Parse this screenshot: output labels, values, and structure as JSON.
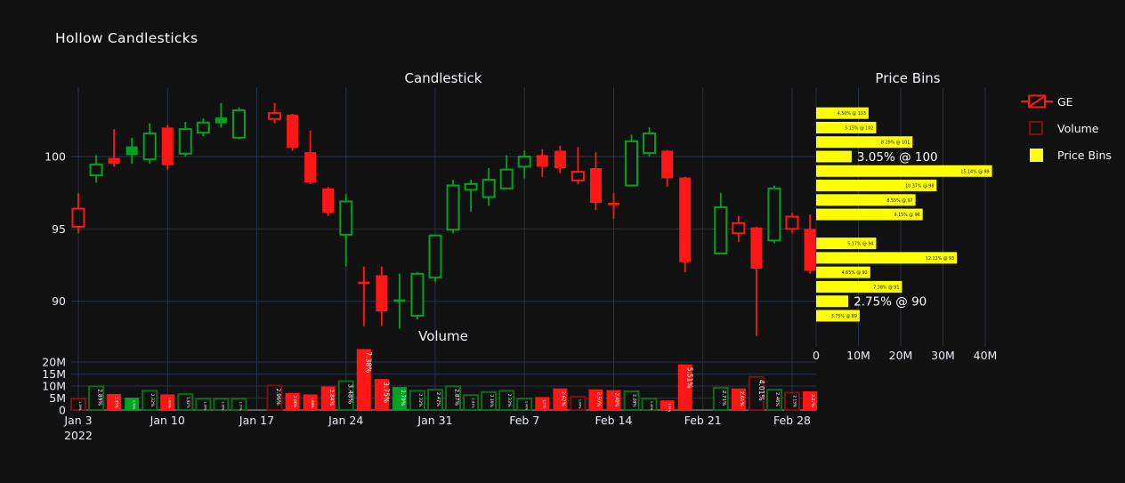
{
  "title": "Hollow Candlesticks",
  "panels": {
    "candlestick": {
      "title": "Candlestick"
    },
    "volume": {
      "title": "Volume"
    },
    "price_bins": {
      "title": "Price Bins"
    }
  },
  "legend": {
    "items": [
      {
        "label": "GE",
        "glyph": "candlestick-icon"
      },
      {
        "label": "Volume",
        "glyph": "hollow-square-icon"
      },
      {
        "label": "Price Bins",
        "glyph": "filled-square-icon"
      }
    ]
  },
  "colors": {
    "background": "#111111",
    "green": "#00a321",
    "green_dim": "#0e6b16",
    "red": "#ff1717",
    "red_dim": "#7d1111",
    "yellow": "#ffff00",
    "grid": "#263347",
    "text": "#e9eef7",
    "axis_line": "#a3a8b0",
    "bin_label": "#111111"
  },
  "chart_data": {
    "type": "candlestick",
    "symbol": "GE",
    "title": "Hollow Candlesticks",
    "price_axis_ticks": [
      100,
      95,
      90
    ],
    "volume_axis_ticks": [
      {
        "v": 0,
        "label": "0"
      },
      {
        "v": 5,
        "label": "5M"
      },
      {
        "v": 10,
        "label": "10M"
      },
      {
        "v": 15,
        "label": "15M"
      },
      {
        "v": 20,
        "label": "20M"
      }
    ],
    "x_ticks": [
      {
        "slot": 0,
        "label": "Jan 3",
        "sublabel": "2022"
      },
      {
        "slot": 5,
        "label": "Jan 10"
      },
      {
        "slot": 10,
        "label": "Jan 17"
      },
      {
        "slot": 15,
        "label": "Jan 24"
      },
      {
        "slot": 20,
        "label": "Jan 31"
      },
      {
        "slot": 25,
        "label": "Feb 7"
      },
      {
        "slot": 30,
        "label": "Feb 14"
      },
      {
        "slot": 35,
        "label": "Feb 21"
      },
      {
        "slot": 40,
        "label": "Feb 28"
      }
    ],
    "candles": [
      {
        "date": "Jan 3",
        "slot": 0,
        "open": 95.15,
        "high": 97.5,
        "low": 94.7,
        "close": 96.4,
        "color": "r",
        "body": "hollow",
        "volume_m": 4.7,
        "volume_pct": "1.38%",
        "vol_style": "hollow"
      },
      {
        "date": "Jan 4",
        "slot": 1,
        "open": 98.7,
        "high": 100.1,
        "low": 98.2,
        "close": 99.45,
        "color": "g",
        "body": "hollow",
        "volume_m": 9.9,
        "volume_pct": "2.89%",
        "vol_style": "hollow"
      },
      {
        "date": "Jan 5",
        "slot": 2,
        "open": 99.9,
        "high": 101.9,
        "low": 99.3,
        "close": 99.5,
        "color": "r",
        "body": "filled",
        "volume_m": 6.7,
        "volume_pct": "1.95%",
        "vol_style": "filled"
      },
      {
        "date": "Jan 6",
        "slot": 3,
        "open": 100.7,
        "high": 101.3,
        "low": 99.5,
        "close": 100.1,
        "color": "g",
        "body": "filled",
        "volume_m": 5.2,
        "volume_pct": "1.52%",
        "vol_style": "filled"
      },
      {
        "date": "Jan 7",
        "slot": 4,
        "open": 99.8,
        "high": 102.3,
        "low": 99.5,
        "close": 101.6,
        "color": "g",
        "body": "hollow",
        "volume_m": 8.0,
        "volume_pct": "2.32%",
        "vol_style": "hollow"
      },
      {
        "date": "Jan 10",
        "slot": 5,
        "open": 102.0,
        "high": 102.2,
        "low": 99.1,
        "close": 99.4,
        "color": "r",
        "body": "filled",
        "volume_m": 6.5,
        "volume_pct": "1.89%",
        "vol_style": "filled"
      },
      {
        "date": "Jan 11",
        "slot": 6,
        "open": 100.2,
        "high": 102.4,
        "low": 100.0,
        "close": 101.9,
        "color": "g",
        "body": "hollow",
        "volume_m": 6.6,
        "volume_pct": "1.92%",
        "vol_style": "hollow"
      },
      {
        "date": "Jan 12",
        "slot": 7,
        "open": 101.65,
        "high": 102.65,
        "low": 101.4,
        "close": 102.35,
        "color": "g",
        "body": "hollow",
        "volume_m": 4.7,
        "volume_pct": "1.38%",
        "vol_style": "hollow"
      },
      {
        "date": "Jan 13",
        "slot": 8,
        "open": 102.7,
        "high": 103.7,
        "low": 102.0,
        "close": 102.3,
        "color": "g",
        "body": "filled",
        "volume_m": 4.7,
        "volume_pct": "1.36%",
        "vol_style": "hollow"
      },
      {
        "date": "Jan 14",
        "slot": 9,
        "open": 101.3,
        "high": 103.4,
        "low": 101.2,
        "close": 103.2,
        "color": "g",
        "body": "hollow",
        "volume_m": 4.7,
        "volume_pct": "1.37%",
        "vol_style": "hollow"
      },
      {
        "date": "Jan 18",
        "slot": 11,
        "open": 102.6,
        "high": 103.7,
        "low": 102.3,
        "close": 103.0,
        "color": "r",
        "body": "hollow",
        "volume_m": 10.2,
        "volume_pct": "2.96%",
        "vol_style": "hollow"
      },
      {
        "date": "Jan 19",
        "slot": 12,
        "open": 102.9,
        "high": 102.95,
        "low": 100.4,
        "close": 100.6,
        "color": "r",
        "body": "filled",
        "volume_m": 7.1,
        "volume_pct": "2.06%",
        "vol_style": "filled"
      },
      {
        "date": "Jan 20",
        "slot": 13,
        "open": 100.3,
        "high": 101.8,
        "low": 98.1,
        "close": 98.2,
        "color": "r",
        "body": "filled",
        "volume_m": 6.5,
        "volume_pct": "1.88%",
        "vol_style": "filled"
      },
      {
        "date": "Jan 21",
        "slot": 14,
        "open": 97.8,
        "high": 97.9,
        "low": 95.9,
        "close": 96.1,
        "color": "r",
        "body": "filled",
        "volume_m": 9.8,
        "volume_pct": "2.84%",
        "vol_style": "filled"
      },
      {
        "date": "Jan 24",
        "slot": 15,
        "open": 94.6,
        "high": 97.4,
        "low": 92.4,
        "close": 96.9,
        "color": "g",
        "body": "hollow",
        "volume_m": 12.0,
        "volume_pct": "3.48%",
        "vol_style": "hollow"
      },
      {
        "date": "Jan 25",
        "slot": 16,
        "open": 91.35,
        "high": 92.4,
        "low": 88.3,
        "close": 91.2,
        "color": "r",
        "body": "filled",
        "volume_m": 25.4,
        "volume_pct": "7.38%",
        "vol_style": "filled"
      },
      {
        "date": "Jan 26",
        "slot": 17,
        "open": 91.8,
        "high": 92.4,
        "low": 88.3,
        "close": 89.3,
        "color": "r",
        "body": "filled",
        "volume_m": 12.9,
        "volume_pct": "3.75%",
        "vol_style": "filled"
      },
      {
        "date": "Jan 27",
        "slot": 18,
        "open": 90.1,
        "high": 91.9,
        "low": 88.1,
        "close": 90.0,
        "color": "g",
        "body": "filled",
        "volume_m": 9.6,
        "volume_pct": "2.79%",
        "vol_style": "filled"
      },
      {
        "date": "Jan 28",
        "slot": 19,
        "open": 89.0,
        "high": 92.0,
        "low": 88.75,
        "close": 91.9,
        "color": "g",
        "body": "hollow",
        "volume_m": 8.0,
        "volume_pct": "2.32%",
        "vol_style": "hollow"
      },
      {
        "date": "Jan 31",
        "slot": 20,
        "open": 91.65,
        "high": 94.6,
        "low": 91.35,
        "close": 94.55,
        "color": "g",
        "body": "hollow",
        "volume_m": 8.5,
        "volume_pct": "2.47%",
        "vol_style": "hollow"
      },
      {
        "date": "Feb 1",
        "slot": 21,
        "open": 94.95,
        "high": 98.4,
        "low": 94.7,
        "close": 98.0,
        "color": "g",
        "body": "hollow",
        "volume_m": 9.9,
        "volume_pct": "2.87%",
        "vol_style": "hollow"
      },
      {
        "date": "Feb 2",
        "slot": 22,
        "open": 97.7,
        "high": 98.4,
        "low": 96.2,
        "close": 98.1,
        "color": "g",
        "body": "hollow",
        "volume_m": 6.2,
        "volume_pct": "1.81%",
        "vol_style": "hollow"
      },
      {
        "date": "Feb 3",
        "slot": 23,
        "open": 97.2,
        "high": 99.2,
        "low": 96.6,
        "close": 98.4,
        "color": "g",
        "body": "hollow",
        "volume_m": 7.5,
        "volume_pct": "2.19%",
        "vol_style": "hollow"
      },
      {
        "date": "Feb 4",
        "slot": 24,
        "open": 97.8,
        "high": 100.1,
        "low": 97.75,
        "close": 99.1,
        "color": "g",
        "body": "hollow",
        "volume_m": 8.0,
        "volume_pct": "2.33%",
        "vol_style": "hollow"
      },
      {
        "date": "Feb 7",
        "slot": 25,
        "open": 99.3,
        "high": 100.4,
        "low": 98.5,
        "close": 100.0,
        "color": "g",
        "body": "hollow",
        "volume_m": 4.8,
        "volume_pct": "1.40%",
        "vol_style": "hollow"
      },
      {
        "date": "Feb 8",
        "slot": 26,
        "open": 100.1,
        "high": 100.5,
        "low": 98.6,
        "close": 99.3,
        "color": "r",
        "body": "filled",
        "volume_m": 5.4,
        "volume_pct": "1.57%",
        "vol_style": "filled"
      },
      {
        "date": "Feb 9",
        "slot": 27,
        "open": 100.4,
        "high": 100.75,
        "low": 98.85,
        "close": 99.2,
        "color": "r",
        "body": "filled",
        "volume_m": 9.0,
        "volume_pct": "2.62%",
        "vol_style": "filled"
      },
      {
        "date": "Feb 10",
        "slot": 28,
        "open": 98.35,
        "high": 100.65,
        "low": 98.1,
        "close": 98.95,
        "color": "r",
        "body": "hollow",
        "volume_m": 5.6,
        "volume_pct": "1.64%",
        "vol_style": "hollow"
      },
      {
        "date": "Feb 11",
        "slot": 29,
        "open": 99.2,
        "high": 100.3,
        "low": 96.3,
        "close": 96.8,
        "color": "r",
        "body": "filled",
        "volume_m": 8.6,
        "volume_pct": "2.50%",
        "vol_style": "filled"
      },
      {
        "date": "Feb 14",
        "slot": 30,
        "open": 96.8,
        "high": 97.5,
        "low": 95.7,
        "close": 96.65,
        "color": "r",
        "body": "filled",
        "volume_m": 8.3,
        "volume_pct": "2.40%",
        "vol_style": "filled"
      },
      {
        "date": "Feb 15",
        "slot": 31,
        "open": 98.0,
        "high": 101.5,
        "low": 97.95,
        "close": 101.05,
        "color": "g",
        "body": "hollow",
        "volume_m": 7.8,
        "volume_pct": "2.28%",
        "vol_style": "hollow"
      },
      {
        "date": "Feb 16",
        "slot": 32,
        "open": 100.25,
        "high": 102.0,
        "low": 100.0,
        "close": 101.6,
        "color": "g",
        "body": "hollow",
        "volume_m": 4.8,
        "volume_pct": "1.40%",
        "vol_style": "hollow"
      },
      {
        "date": "Feb 17",
        "slot": 33,
        "open": 100.4,
        "high": 100.45,
        "low": 97.9,
        "close": 98.5,
        "color": "r",
        "body": "filled",
        "volume_m": 4.0,
        "volume_pct": "1.16%",
        "vol_style": "filled"
      },
      {
        "date": "Feb 18",
        "slot": 34,
        "open": 98.55,
        "high": 98.6,
        "low": 92.0,
        "close": 92.7,
        "color": "r",
        "body": "filled",
        "volume_m": 19.0,
        "volume_pct": "5.51%",
        "vol_style": "filled"
      },
      {
        "date": "Feb 22",
        "slot": 36,
        "open": 93.3,
        "high": 97.5,
        "low": 93.25,
        "close": 96.5,
        "color": "g",
        "body": "hollow",
        "volume_m": 9.3,
        "volume_pct": "2.71%",
        "vol_style": "hollow"
      },
      {
        "date": "Feb 23",
        "slot": 37,
        "open": 94.7,
        "high": 95.9,
        "low": 94.1,
        "close": 95.4,
        "color": "r",
        "body": "hollow",
        "volume_m": 9.0,
        "volume_pct": "2.61%",
        "vol_style": "filled"
      },
      {
        "date": "Feb 24",
        "slot": 38,
        "open": 95.1,
        "high": 95.15,
        "low": 87.6,
        "close": 92.25,
        "color": "r",
        "body": "filled",
        "volume_m": 13.8,
        "volume_pct": "4.01%",
        "vol_style": "hollow"
      },
      {
        "date": "Feb 25",
        "slot": 39,
        "open": 94.2,
        "high": 98.0,
        "low": 94.0,
        "close": 97.8,
        "color": "g",
        "body": "hollow",
        "volume_m": 8.5,
        "volume_pct": "2.46%",
        "vol_style": "hollow"
      },
      {
        "date": "Feb 28",
        "slot": 40,
        "open": 95.0,
        "high": 96.1,
        "low": 94.7,
        "close": 95.85,
        "color": "r",
        "body": "hollow",
        "volume_m": 7.3,
        "volume_pct": "2.13%",
        "vol_style": "hollow"
      },
      {
        "date": "Mar 1",
        "slot": 41,
        "open": 95.0,
        "high": 96.0,
        "low": 91.9,
        "close": 92.1,
        "color": "r",
        "body": "filled",
        "volume_m": 7.8,
        "volume_pct": "2.27%",
        "vol_style": "filled"
      }
    ],
    "price_bins": {
      "x_ticks": [
        {
          "v": 0,
          "label": "0"
        },
        {
          "v": 10,
          "label": "10M"
        },
        {
          "v": 20,
          "label": "20M"
        },
        {
          "v": 30,
          "label": "30M"
        },
        {
          "v": 40,
          "label": "40M"
        }
      ],
      "bins": [
        {
          "price": 103,
          "pct": "4.50%",
          "volume_m": 12.4,
          "label": "4.50% @ 103",
          "label_style": "inside"
        },
        {
          "price": 102,
          "pct": "5.15%",
          "volume_m": 14.2,
          "label": "5.15% @ 102",
          "label_style": "inside"
        },
        {
          "price": 101,
          "pct": "8.29%",
          "volume_m": 22.8,
          "label": "8.29% @ 101",
          "label_style": "inside"
        },
        {
          "price": 100,
          "pct": "3.05%",
          "volume_m": 8.4,
          "label": "3.05% @ 100",
          "label_style": "outside"
        },
        {
          "price": 99,
          "pct": "15.14%",
          "volume_m": 41.6,
          "label": "15.14% @ 99",
          "label_style": "inside"
        },
        {
          "price": 98,
          "pct": "10.37%",
          "volume_m": 28.5,
          "label": "10.37% @ 98",
          "label_style": "inside"
        },
        {
          "price": 97,
          "pct": "8.55%",
          "volume_m": 23.5,
          "label": "8.55% @ 97",
          "label_style": "inside"
        },
        {
          "price": 96,
          "pct": "9.15%",
          "volume_m": 25.2,
          "label": "9.15% @ 96",
          "label_style": "inside"
        },
        {
          "price": 94,
          "pct": "5.17%",
          "volume_m": 14.2,
          "label": "5.17% @ 94",
          "label_style": "inside"
        },
        {
          "price": 93,
          "pct": "12.12%",
          "volume_m": 33.3,
          "label": "12.12% @ 93",
          "label_style": "inside"
        },
        {
          "price": 92,
          "pct": "4.65%",
          "volume_m": 12.8,
          "label": "4.65% @ 92",
          "label_style": "inside"
        },
        {
          "price": 91,
          "pct": "7.38%",
          "volume_m": 20.3,
          "label": "7.38% @ 91",
          "label_style": "inside"
        },
        {
          "price": 90,
          "pct": "2.75%",
          "volume_m": 7.6,
          "label": "2.75% @ 90",
          "label_style": "outside"
        },
        {
          "price": 89,
          "pct": "3.75%",
          "volume_m": 10.3,
          "label": "3.75% @ 89",
          "label_style": "inside"
        }
      ]
    }
  }
}
